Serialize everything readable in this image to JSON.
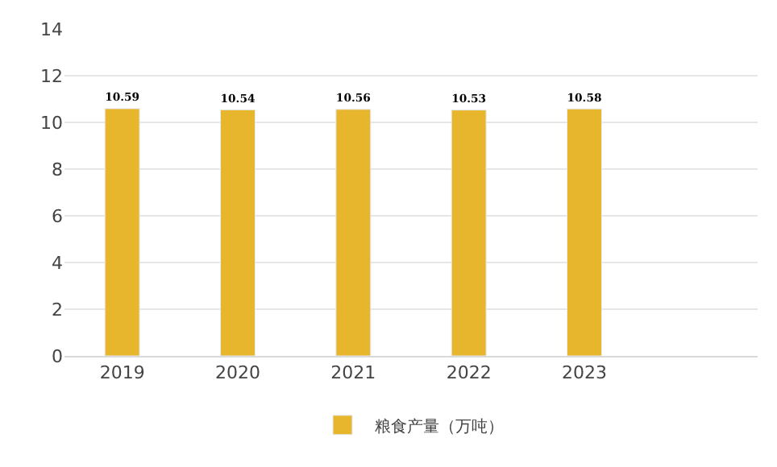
{
  "chart_data": {
    "type": "bar",
    "categories": [
      "2019",
      "2020",
      "2021",
      "2022",
      "2023"
    ],
    "series": [
      {
        "name": "粮食产量（万吨）",
        "color": "#e8b62c",
        "values": [
          10.59,
          10.54,
          10.56,
          10.53,
          10.58
        ]
      }
    ],
    "ylim": [
      0,
      14
    ],
    "yticks": [
      0,
      2,
      4,
      6,
      8,
      10,
      12,
      14
    ],
    "grid": "y",
    "legend": "bottom",
    "data_labels": true
  }
}
